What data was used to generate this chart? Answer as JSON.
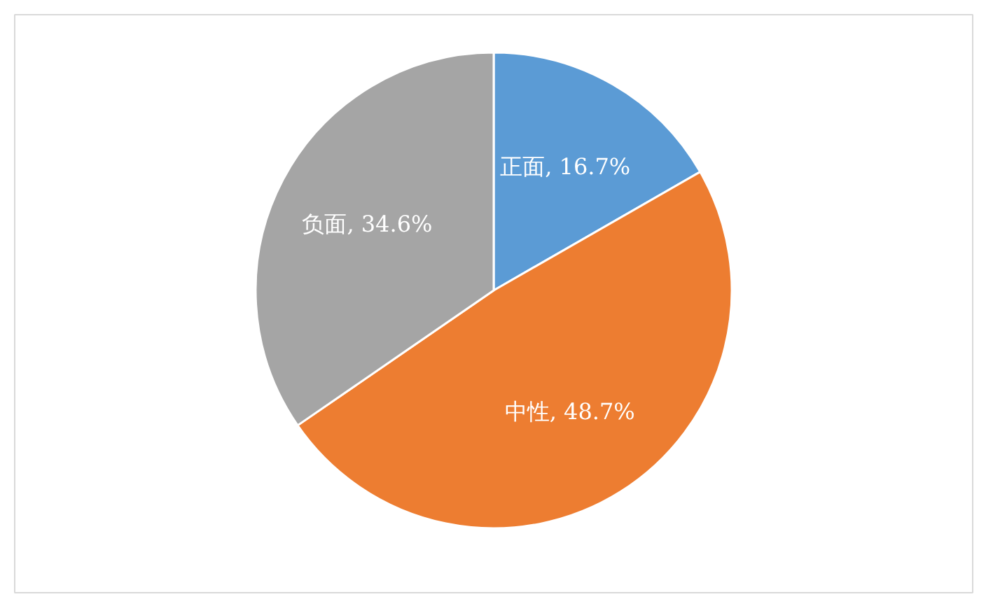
{
  "chart_data": {
    "type": "pie",
    "categories": [
      "正面",
      "中性",
      "负面"
    ],
    "values": [
      16.7,
      48.7,
      34.6
    ],
    "colors": [
      "#5b9bd5",
      "#ed7d31",
      "#a5a5a5"
    ],
    "value_labels": [
      "16.7%",
      "48.7%",
      "34.6%"
    ]
  }
}
